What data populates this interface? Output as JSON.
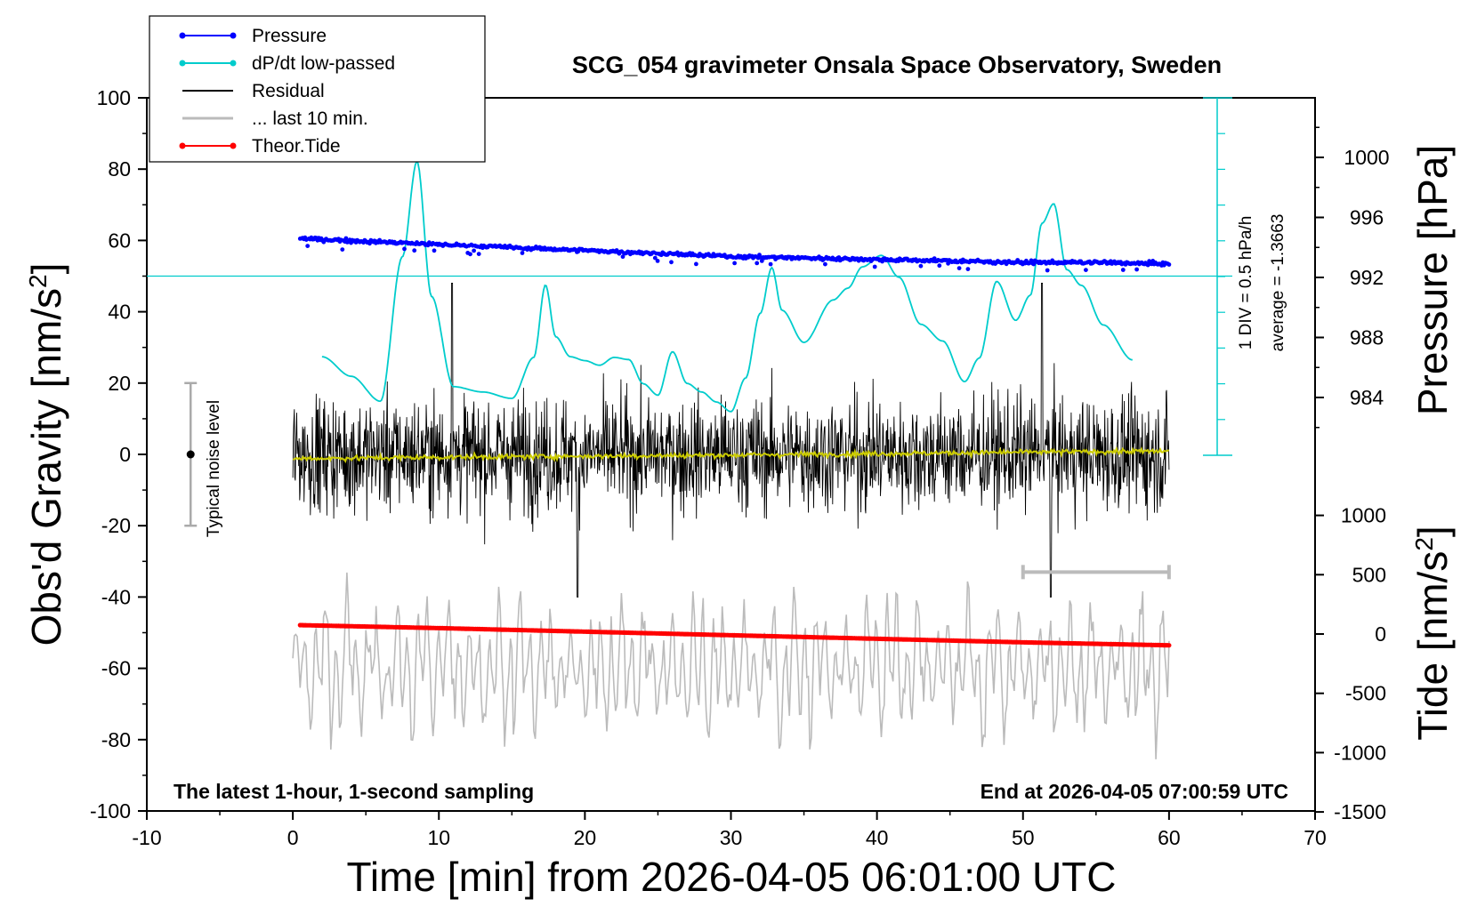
{
  "chart_data": {
    "type": "line",
    "title": "SCG_054 gravimeter Onsala Space Observatory, Sweden",
    "xlabel": "Time [min] from 2026-04-05 06:01:00 UTC",
    "ylabel_left": "Obs'd Gravity [nm/s",
    "ylabel_left_sup": "2",
    "ylabel_left_end": "]",
    "ylabel_pressure": "Pressure [hPa]",
    "ylabel_tide": "Tide [nm/s",
    "ylabel_tide_sup": "2",
    "ylabel_tide_end": "]",
    "xlim": [
      -10,
      70
    ],
    "ylim_left": [
      -100,
      100
    ],
    "pressure_range": [
      980,
      1004
    ],
    "tide_range": [
      -1500,
      1500
    ],
    "x_ticks": [
      "-10",
      "0",
      "10",
      "20",
      "30",
      "40",
      "50",
      "60",
      "70"
    ],
    "y_left_ticks": [
      "100",
      "80",
      "60",
      "40",
      "20",
      "0",
      "-20",
      "-40",
      "-60",
      "-80",
      "-100"
    ],
    "pressure_ticks": [
      "1000",
      "996",
      "992",
      "988",
      "984"
    ],
    "tide_ticks": [
      "1000",
      "500",
      "0",
      "-500",
      "-1000",
      "-1500"
    ],
    "legend_position": "top-left",
    "legend": [
      {
        "label": "Pressure",
        "color": "#0000ff",
        "marker": true
      },
      {
        "label": "dP/dt low-passed",
        "color": "#00cccc",
        "marker": true
      },
      {
        "label": "Residual",
        "color": "#000000",
        "marker": false
      },
      {
        "label": "... last 10 min.",
        "color": "#bbbbbb",
        "marker": false
      },
      {
        "label": "Theor.Tide",
        "color": "#ff0000",
        "marker": true
      }
    ],
    "series": [
      {
        "name": "Pressure",
        "color": "#0000ff",
        "units": "hPa",
        "x": [
          0.5,
          5,
          10,
          15,
          20,
          25,
          30,
          35,
          40,
          45,
          50,
          55,
          60
        ],
        "values": [
          994.6,
          994.4,
          994.2,
          994.0,
          993.8,
          993.6,
          993.4,
          993.3,
          993.2,
          993.1,
          993.0,
          993.0,
          992.9
        ]
      },
      {
        "name": "dP/dt low-passed",
        "color": "#00cccc",
        "units": "relative to average line",
        "x": [
          2,
          4,
          6,
          7.5,
          8.5,
          9.5,
          11,
          13,
          15,
          16.5,
          17.3,
          18,
          19,
          20,
          21,
          22,
          23,
          24,
          25,
          26,
          27,
          28,
          29,
          30,
          31,
          32,
          32.8,
          33.5,
          35,
          37,
          38,
          39,
          40.3,
          41.5,
          43,
          44.5,
          46,
          47,
          48.2,
          49.5,
          50.5,
          51.3,
          52.1,
          53,
          54,
          55.5,
          57.5
        ],
        "values": [
          -22.6,
          -28.1,
          -35.1,
          5.4,
          32.2,
          -5.7,
          -31.0,
          -32.5,
          -34.3,
          -22.8,
          -2.5,
          -17.0,
          -22.6,
          -23.7,
          -25.0,
          -22.8,
          -23.4,
          -30.2,
          -33.4,
          -21.2,
          -30.1,
          -32.5,
          -35.3,
          -38.0,
          -28.6,
          -10.5,
          2.4,
          -9.6,
          -18.6,
          -6.7,
          -3.4,
          2.6,
          5.8,
          -0.3,
          -13.5,
          -18.2,
          -29.6,
          -23.0,
          -1.5,
          -12.4,
          -5.4,
          14.8,
          20.3,
          1.8,
          -2.6,
          -13.7,
          -23.5
        ]
      },
      {
        "name": "Residual",
        "color": "#000000",
        "units": "nm/s^2",
        "x": [
          0,
          60
        ],
        "values": [
          0,
          0
        ],
        "noise_amplitude": 15,
        "extremes": [
          [
            10.9,
            48
          ],
          [
            19.5,
            -40
          ],
          [
            51.3,
            48
          ],
          [
            51.9,
            -40
          ]
        ]
      },
      {
        "name": "Residual mean",
        "color": "#cccc00",
        "units": "nm/s^2",
        "x": [
          0,
          10,
          20,
          30,
          40,
          50,
          60
        ],
        "values": [
          -1.2,
          -0.8,
          -0.5,
          -0.2,
          0.2,
          0.6,
          0.9
        ]
      },
      {
        "name": "... last 10 min.",
        "color": "#bbbbbb",
        "units": "nm/s^2",
        "x": [
          0,
          60
        ],
        "values": [
          -60,
          -60
        ],
        "amplitude": 20
      },
      {
        "name": "Theor.Tide",
        "color": "#ff0000",
        "units": "nm/s^2",
        "x": [
          0.5,
          10,
          20,
          30,
          40,
          50,
          60
        ],
        "values": [
          75,
          50,
          20,
          -10,
          -40,
          -70,
          -95
        ]
      }
    ],
    "dpdt_scale_label": "1 DIV = 0.5 hPa/h",
    "dpdt_average_label": "average = -1.3663",
    "dpdt_average_level_left": 50,
    "noise_bar_label": "Typical noise level",
    "noise_bar_range": [
      -20,
      20
    ],
    "last10_bar_x": [
      50,
      60
    ],
    "last10_bar_level": -33,
    "note_left": "The latest 1-hour, 1-second sampling",
    "note_right": "End at 2026-04-05 07:00:59 UTC"
  }
}
